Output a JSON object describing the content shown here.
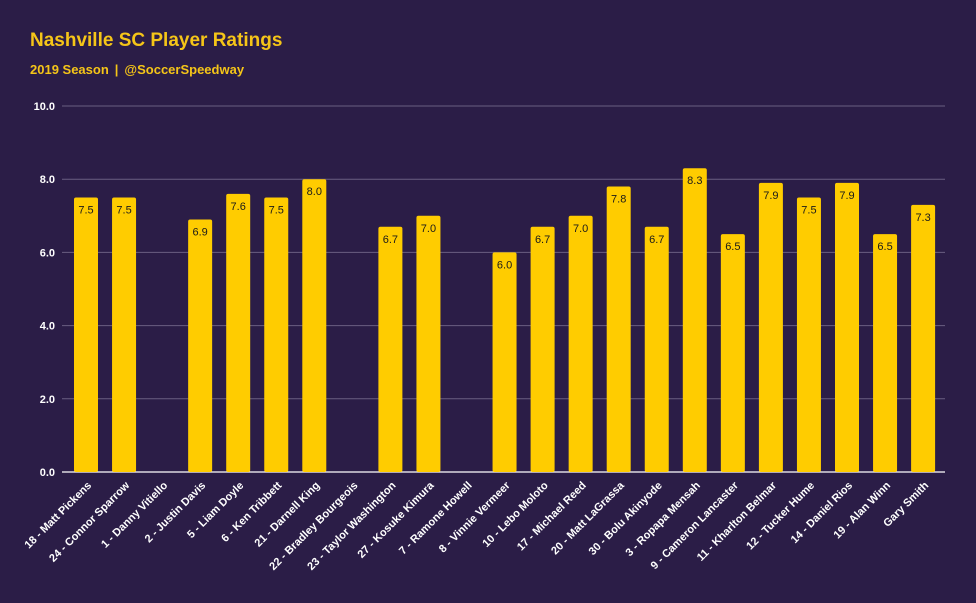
{
  "header": {
    "title": "Nashville SC Player Ratings",
    "season": "2019 Season",
    "separator": "|",
    "handle": "@SoccerSpeedway"
  },
  "colors": {
    "background": "#2b1d47",
    "bar": "#ffcc00",
    "text": "#f5c518",
    "grid": "#6a5f82",
    "label": "#ffffff"
  },
  "chart_data": {
    "type": "bar",
    "categories": [
      "18 - Matt Pickens",
      "24 - Connor Sparrow",
      "1 - Danny Vitiello",
      "2 - Justin Davis",
      "5 - Liam Doyle",
      "6 - Ken Tribbett",
      "21 - Darnell King",
      "22 - Bradley Bourgeois",
      "23 - Taylor Washington",
      "27 - Kosuke Kimura",
      "7 - Ramone Howell",
      "8 - Vinnie Vermeer",
      "10 - Lebo Moloto",
      "17 - Michael Reed",
      "20 - Matt LaGrassa",
      "30 - Bolu Akinyode",
      "3 - Ropapa Mensah",
      "9 - Cameron Lancaster",
      "11 - Kharlton Belmar",
      "12 - Tucker Hume",
      "14 - Daniel Rios",
      "19 - Alan Winn",
      "Gary Smith"
    ],
    "values": [
      7.5,
      7.5,
      null,
      6.9,
      7.6,
      7.5,
      8.0,
      null,
      6.7,
      7.0,
      null,
      6.0,
      6.7,
      7.0,
      7.8,
      6.7,
      8.3,
      6.5,
      7.9,
      7.5,
      7.9,
      6.5,
      7.3
    ],
    "value_labels": [
      "7.5",
      "7.5",
      "",
      "6.9",
      "7.6",
      "7.5",
      "8.0",
      "",
      "6.7",
      "7.0",
      "",
      "6.0",
      "6.7",
      "7.0",
      "7.8",
      "6.7",
      "8.3",
      "6.5",
      "7.9",
      "7.5",
      "7.9",
      "6.5",
      "7.3"
    ],
    "title": "Nashville SC Player Ratings",
    "subtitle": "2019 Season  |  @SoccerSpeedway",
    "xlabel": "",
    "ylabel": "",
    "ylim": [
      0,
      10
    ],
    "yticks": [
      "0.0",
      "2.0",
      "4.0",
      "6.0",
      "8.0",
      "10.0"
    ],
    "grid": true,
    "legend": "none"
  }
}
